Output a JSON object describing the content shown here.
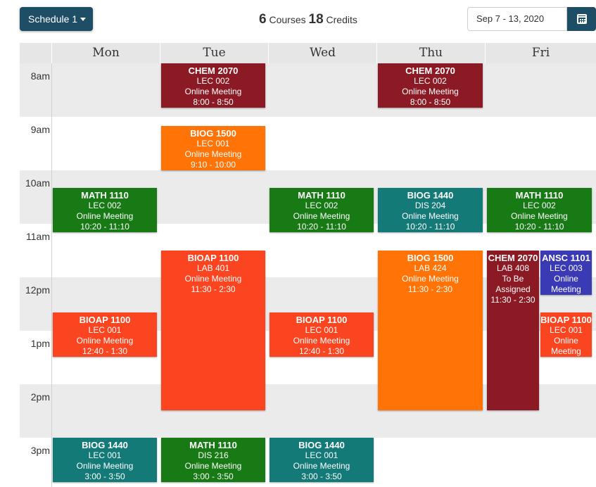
{
  "toolbar": {
    "schedule_label": "Schedule 1",
    "courses_count": "6",
    "courses_word": "Courses",
    "credits_count": "18",
    "credits_word": "Credits",
    "date_range": "Sep 7 - 13, 2020",
    "calendar_icon": "calendar-icon"
  },
  "days": [
    "Mon",
    "Tue",
    "Wed",
    "Thu",
    "Fri"
  ],
  "hours": [
    "8am",
    "9am",
    "10am",
    "11am",
    "12pm",
    "1pm",
    "2pm",
    "3pm"
  ],
  "colors": {
    "chem": "#8c1a24",
    "biog1500": "#ff7307",
    "math": "#177a14",
    "biog1440": "#137a78",
    "bioap": "#fb4521",
    "ansc": "#3a3bb4",
    "button": "#1e4d66"
  },
  "events": [
    {
      "code": "CHEM 2070",
      "section": "LEC 002",
      "location": "Online Meeting",
      "time": "8:00 - 8:50"
    },
    {
      "code": "BIOG 1500",
      "section": "LEC 001",
      "location": "Online Meeting",
      "time": "9:10 - 10:00"
    },
    {
      "code": "BIOAP 1100",
      "section": "LAB 401",
      "location": "Online Meeting",
      "time": "11:30 - 2:30"
    },
    {
      "code": "MATH 1110",
      "section": "DIS 216",
      "location": "Online Meeting",
      "time": "3:00 - 3:50"
    },
    {
      "code": "MATH 1110",
      "section": "LEC 002",
      "location": "Online Meeting",
      "time": "10:20 - 11:10"
    },
    {
      "code": "BIOAP 1100",
      "section": "LEC 001",
      "location": "Online Meeting",
      "time": "12:40 - 1:30"
    },
    {
      "code": "BIOG 1440",
      "section": "LEC 001",
      "location": "Online Meeting",
      "time": "3:00 - 3:50"
    },
    {
      "code": "MATH 1110",
      "section": "LEC 002",
      "location": "Online Meeting",
      "time": "10:20 - 11:10"
    },
    {
      "code": "BIOAP 1100",
      "section": "LEC 001",
      "location": "Online Meeting",
      "time": "12:40 - 1:30"
    },
    {
      "code": "BIOG 1440",
      "section": "LEC 001",
      "location": "Online Meeting",
      "time": "3:00 - 3:50"
    },
    {
      "code": "CHEM 2070",
      "section": "LEC 002",
      "location": "Online Meeting",
      "time": "8:00 - 8:50"
    },
    {
      "code": "BIOG 1440",
      "section": "DIS 204",
      "location": "Online Meeting",
      "time": "10:20 - 11:10"
    },
    {
      "code": "BIOG 1500",
      "section": "LAB 424",
      "location": "Online Meeting",
      "time": "11:30 - 2:30"
    },
    {
      "code": "MATH 1110",
      "section": "LEC 002",
      "location": "Online Meeting",
      "time": "10:20 - 11:10"
    },
    {
      "code": "CHEM 2070",
      "section": "LAB 408",
      "location": "To Be Assigned",
      "time": "11:30 - 2:30"
    },
    {
      "code": "ANSC 1101",
      "section": "LEC 003",
      "location": "Online Meeting",
      "time": ""
    },
    {
      "code": "BIOAP 1100",
      "section": "LEC 001",
      "location": "Online Meeting",
      "time": ""
    }
  ]
}
